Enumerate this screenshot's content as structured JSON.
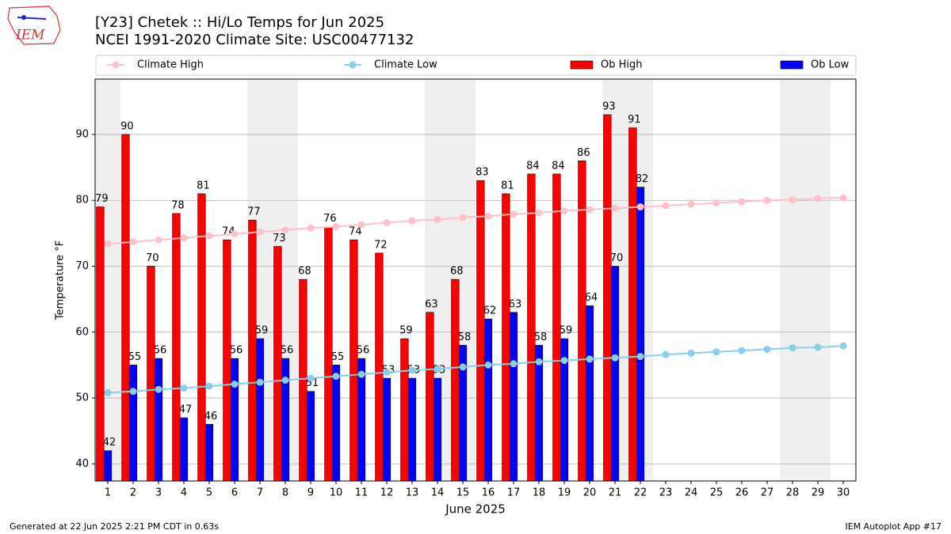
{
  "chart_data": {
    "type": "bar",
    "title": "[Y23] Chetek :: Hi/Lo Temps for Jun 2025",
    "subtitle": "NCEI 1991-2020 Climate Site: USC00477132",
    "xlabel": "June 2025",
    "ylabel": "Temperature °F",
    "logo_text": "IEM",
    "footer_left": "Generated at 22 Jun 2025 2:21 PM CDT in 0.63s",
    "footer_right": "IEM Autoplot App #17",
    "x": [
      1,
      2,
      3,
      4,
      5,
      6,
      7,
      8,
      9,
      10,
      11,
      12,
      13,
      14,
      15,
      16,
      17,
      18,
      19,
      20,
      21,
      22,
      23,
      24,
      25,
      26,
      27,
      28,
      29,
      30
    ],
    "xlim": [
      0.5,
      30.5
    ],
    "xticks": [
      1,
      2,
      3,
      4,
      5,
      6,
      7,
      8,
      9,
      10,
      11,
      12,
      13,
      14,
      15,
      16,
      17,
      18,
      19,
      20,
      21,
      22,
      23,
      24,
      25,
      26,
      27,
      28,
      29,
      30
    ],
    "ylim": [
      37.4,
      98.4
    ],
    "yticks": [
      40,
      50,
      60,
      70,
      80,
      90
    ],
    "grid": true,
    "shaded_days": [
      1,
      7,
      8,
      14,
      15,
      21,
      22,
      28,
      29
    ],
    "shade_color": "#efefef",
    "series": [
      {
        "name": "Climate High",
        "kind": "line",
        "color": "#ffc0cb",
        "values": [
          73.4,
          73.7,
          74.0,
          74.3,
          74.6,
          74.9,
          75.2,
          75.5,
          75.8,
          76.0,
          76.3,
          76.6,
          76.9,
          77.1,
          77.4,
          77.6,
          77.9,
          78.1,
          78.4,
          78.6,
          78.8,
          79.0,
          79.2,
          79.4,
          79.6,
          79.8,
          80.0,
          80.1,
          80.3,
          80.4
        ]
      },
      {
        "name": "Climate Low",
        "kind": "line",
        "color": "#87ceeb",
        "values": [
          50.8,
          51.0,
          51.3,
          51.5,
          51.8,
          52.1,
          52.4,
          52.7,
          53.0,
          53.3,
          53.6,
          53.9,
          54.2,
          54.4,
          54.7,
          55.0,
          55.2,
          55.5,
          55.7,
          55.9,
          56.1,
          56.3,
          56.6,
          56.8,
          57.0,
          57.2,
          57.4,
          57.6,
          57.7,
          57.9
        ]
      },
      {
        "name": "Ob High",
        "kind": "bar",
        "color": "#ff0000",
        "values": [
          79,
          90,
          70,
          78,
          81,
          74,
          77,
          73,
          68,
          76,
          74,
          72,
          59,
          63,
          68,
          83,
          81,
          84,
          84,
          86,
          93,
          91,
          null,
          null,
          null,
          null,
          null,
          null,
          null,
          null
        ]
      },
      {
        "name": "Ob Low",
        "kind": "bar",
        "color": "#0000ff",
        "values": [
          42,
          55,
          56,
          47,
          46,
          56,
          59,
          56,
          51,
          55,
          56,
          53,
          53,
          53,
          58,
          62,
          63,
          58,
          59,
          64,
          70,
          82,
          null,
          null,
          null,
          null,
          null,
          null,
          null,
          null
        ]
      }
    ]
  }
}
